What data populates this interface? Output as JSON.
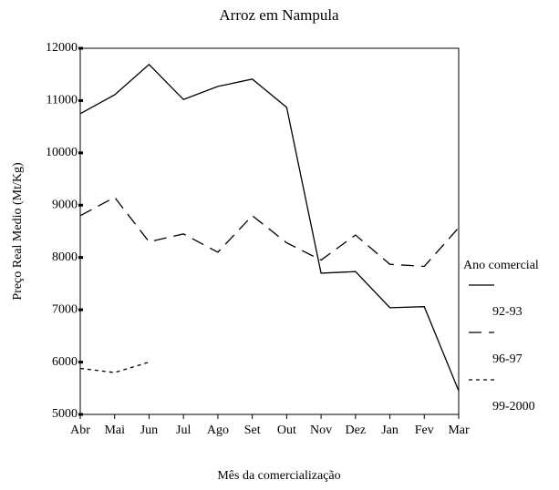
{
  "chart_data": {
    "type": "line",
    "title": "Arroz em Nampula",
    "x_label": "Mês da comercialização",
    "y_label": "Preço Real Medio (Mt/Kg)",
    "legend_title": "Ano comercial",
    "legend": "right",
    "categories": [
      "Abr",
      "Mai",
      "Jun",
      "Jul",
      "Ago",
      "Set",
      "Out",
      "Nov",
      "Dez",
      "Jan",
      "Fev",
      "Mar"
    ],
    "series": [
      {
        "name": "92-93",
        "color": "#000000",
        "dash": "solid",
        "values": [
          10750,
          11110,
          11690,
          11020,
          11270,
          11410,
          10870,
          7700,
          7730,
          7040,
          7060,
          5450
        ]
      },
      {
        "name": "96-97",
        "color": "#000000",
        "dash": "long",
        "values": [
          8800,
          9150,
          8300,
          8450,
          8100,
          8800,
          8280,
          7950,
          8430,
          7870,
          7830,
          8570
        ]
      },
      {
        "name": "99-2000",
        "color": "#000000",
        "dash": "short",
        "values": [
          5880,
          5800,
          6000,
          null,
          null,
          null,
          null,
          null,
          null,
          null,
          null,
          null
        ]
      }
    ],
    "ylim": [
      5000,
      12000
    ],
    "yticks": [
      5000,
      6000,
      7000,
      8000,
      9000,
      10000,
      11000,
      12000
    ],
    "grid": false
  }
}
